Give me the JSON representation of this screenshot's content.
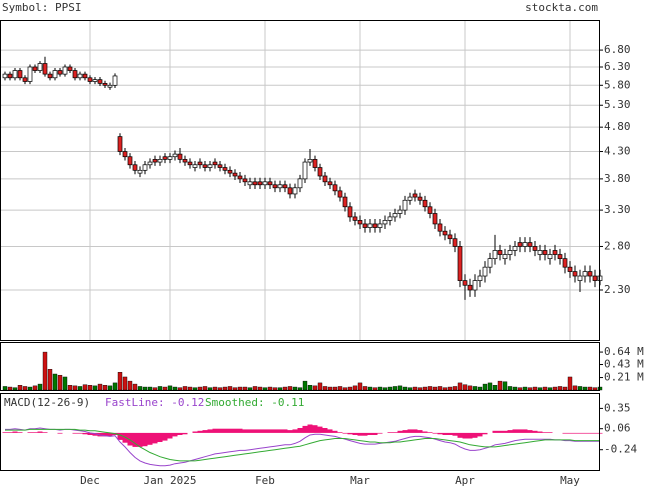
{
  "chart_data": [
    {
      "type": "candlestick",
      "title": "Symbol: PPSI",
      "source": "stockta.com",
      "log_scale": true,
      "grid": true,
      "up_color": "#ffffff",
      "down_color": "#dd2222",
      "outline_color": "#000000",
      "x": [
        0,
        1,
        2,
        3,
        4,
        5,
        6,
        7,
        8,
        9,
        10,
        11,
        12,
        13,
        14,
        15,
        16,
        17,
        18,
        19,
        20,
        21,
        22,
        23,
        24,
        25,
        26,
        27,
        28,
        29,
        30,
        31,
        32,
        33,
        34,
        35,
        36,
        37,
        38,
        39,
        40,
        41,
        42,
        43,
        44,
        45,
        46,
        47,
        48,
        49,
        50,
        51,
        52,
        53,
        54,
        55,
        56,
        57,
        58,
        59,
        60,
        61,
        62,
        63,
        64,
        65,
        66,
        67,
        68,
        69,
        70,
        71,
        72,
        73,
        74,
        75,
        76,
        77,
        78,
        79,
        80,
        81,
        82,
        83,
        84,
        85,
        86,
        87,
        88,
        89,
        90,
        91,
        92,
        93,
        94,
        95,
        96,
        97,
        98,
        99,
        100,
        101,
        102,
        103,
        104,
        105,
        106,
        107,
        108,
        109,
        110,
        111,
        112,
        113,
        114,
        115,
        116,
        117,
        118,
        119
      ],
      "xlim": [
        -1,
        119
      ],
      "xticks": [
        {
          "value": 17,
          "label": "Dec"
        },
        {
          "value": 33,
          "label": "Jan 2025"
        },
        {
          "value": 52,
          "label": "Feb"
        },
        {
          "value": 71,
          "label": "Mar"
        },
        {
          "value": 92,
          "label": "Apr"
        },
        {
          "value": 113,
          "label": "May"
        }
      ],
      "ylim": [
        1.835,
        7.79
      ],
      "yticks": [
        {
          "value": 6.8,
          "label": "6.80"
        },
        {
          "value": 6.3,
          "label": "6.30"
        },
        {
          "value": 5.8,
          "label": "5.80"
        },
        {
          "value": 5.3,
          "label": "5.30"
        },
        {
          "value": 4.8,
          "label": "4.80"
        },
        {
          "value": 4.3,
          "label": "4.30"
        },
        {
          "value": 3.8,
          "label": "3.80"
        },
        {
          "value": 3.3,
          "label": "3.30"
        },
        {
          "value": 2.8,
          "label": "2.80"
        },
        {
          "value": 2.3,
          "label": "2.30"
        }
      ],
      "open": [
        6.0,
        6.1,
        6.0,
        6.2,
        6.0,
        5.9,
        6.3,
        6.2,
        6.4,
        6.1,
        6.0,
        6.2,
        6.1,
        6.3,
        6.2,
        6.0,
        6.1,
        6.0,
        5.9,
        5.95,
        5.85,
        5.75,
        5.8,
        4.6,
        4.3,
        4.2,
        4.05,
        3.9,
        3.95,
        4.05,
        4.15,
        4.1,
        4.2,
        4.15,
        4.2,
        4.25,
        4.15,
        4.1,
        4.0,
        4.1,
        4.05,
        4.0,
        4.1,
        4.05,
        4.0,
        3.95,
        3.9,
        3.85,
        3.8,
        3.7,
        3.75,
        3.75,
        3.7,
        3.75,
        3.7,
        3.65,
        3.7,
        3.65,
        3.55,
        3.65,
        3.8,
        4.1,
        4.15,
        4.0,
        3.85,
        3.75,
        3.7,
        3.6,
        3.5,
        3.35,
        3.2,
        3.15,
        3.1,
        3.05,
        3.1,
        3.05,
        3.1,
        3.15,
        3.2,
        3.25,
        3.3,
        3.45,
        3.55,
        3.5,
        3.45,
        3.35,
        3.25,
        3.1,
        3.0,
        2.95,
        2.9,
        2.8,
        2.4,
        2.35,
        2.3,
        2.4,
        2.45,
        2.55,
        2.65,
        2.75,
        2.65,
        2.7,
        2.75,
        2.85,
        2.8,
        2.85,
        2.8,
        2.7,
        2.75,
        2.65,
        2.75,
        2.7,
        2.65,
        2.55,
        2.5,
        2.4,
        2.45,
        2.5,
        2.45,
        2.4
      ],
      "high": [
        6.17,
        6.17,
        6.27,
        6.27,
        6.07,
        6.37,
        6.37,
        6.47,
        6.6,
        6.17,
        6.27,
        6.27,
        6.37,
        6.37,
        6.27,
        6.17,
        6.17,
        6.07,
        6.02,
        6.02,
        5.92,
        5.87,
        6.12,
        4.67,
        4.37,
        4.27,
        4.12,
        4.02,
        4.12,
        4.17,
        4.22,
        4.22,
        4.27,
        4.27,
        4.32,
        4.37,
        4.22,
        4.17,
        4.12,
        4.17,
        4.12,
        4.12,
        4.17,
        4.12,
        4.07,
        4.02,
        3.97,
        3.92,
        3.87,
        3.82,
        3.82,
        3.82,
        3.82,
        3.82,
        3.77,
        3.77,
        3.77,
        3.72,
        3.72,
        3.87,
        4.17,
        4.35,
        4.22,
        4.07,
        3.92,
        3.82,
        3.77,
        3.67,
        3.57,
        3.42,
        3.27,
        3.22,
        3.17,
        3.17,
        3.17,
        3.17,
        3.22,
        3.27,
        3.32,
        3.37,
        3.52,
        3.57,
        3.62,
        3.57,
        3.52,
        3.42,
        3.32,
        3.17,
        3.07,
        3.02,
        2.97,
        2.87,
        2.47,
        2.42,
        2.47,
        2.52,
        2.62,
        2.72,
        2.95,
        2.82,
        2.77,
        2.82,
        2.87,
        2.92,
        2.92,
        2.92,
        2.87,
        2.82,
        2.82,
        2.77,
        2.82,
        2.77,
        2.72,
        2.62,
        2.57,
        2.52,
        2.57,
        2.57,
        2.52,
        2.52
      ],
      "low": [
        5.93,
        5.93,
        5.93,
        5.93,
        5.83,
        5.83,
        6.13,
        6.13,
        6.03,
        5.93,
        5.93,
        6.03,
        6.03,
        6.13,
        5.93,
        5.93,
        5.93,
        5.83,
        5.83,
        5.78,
        5.73,
        5.68,
        5.73,
        4.23,
        4.13,
        3.98,
        3.88,
        3.83,
        3.88,
        3.98,
        4.03,
        4.03,
        4.08,
        4.08,
        4.13,
        4.08,
        4.03,
        3.98,
        3.93,
        3.98,
        3.93,
        3.93,
        3.98,
        3.93,
        3.88,
        3.83,
        3.78,
        3.73,
        3.68,
        3.63,
        3.63,
        3.63,
        3.63,
        3.63,
        3.58,
        3.58,
        3.58,
        3.48,
        3.48,
        3.58,
        3.73,
        4.03,
        3.93,
        3.78,
        3.68,
        3.63,
        3.53,
        3.43,
        3.28,
        3.13,
        3.08,
        3.03,
        2.98,
        2.98,
        2.98,
        2.98,
        3.03,
        3.08,
        3.13,
        3.18,
        3.23,
        3.38,
        3.43,
        3.38,
        3.28,
        3.18,
        3.03,
        2.93,
        2.88,
        2.83,
        2.73,
        2.33,
        2.2,
        2.23,
        2.23,
        2.33,
        2.38,
        2.48,
        2.58,
        2.63,
        2.58,
        2.63,
        2.68,
        2.73,
        2.73,
        2.73,
        2.68,
        2.63,
        2.63,
        2.58,
        2.63,
        2.58,
        2.48,
        2.43,
        2.38,
        2.28,
        2.38,
        2.38,
        2.33,
        2.35
      ],
      "close": [
        6.1,
        6.0,
        6.2,
        6.0,
        5.9,
        6.3,
        6.2,
        6.4,
        6.1,
        6.0,
        6.2,
        6.1,
        6.3,
        6.2,
        6.0,
        6.1,
        6.0,
        5.9,
        5.95,
        5.85,
        5.8,
        5.8,
        6.05,
        4.3,
        4.2,
        4.05,
        3.95,
        3.95,
        4.05,
        4.1,
        4.1,
        4.15,
        4.15,
        4.2,
        4.25,
        4.15,
        4.1,
        4.05,
        4.05,
        4.05,
        4.0,
        4.05,
        4.05,
        4.0,
        3.95,
        3.9,
        3.85,
        3.8,
        3.75,
        3.75,
        3.7,
        3.7,
        3.75,
        3.7,
        3.65,
        3.7,
        3.65,
        3.55,
        3.65,
        3.8,
        4.1,
        4.15,
        4.0,
        3.85,
        3.75,
        3.7,
        3.6,
        3.5,
        3.35,
        3.2,
        3.15,
        3.1,
        3.05,
        3.1,
        3.05,
        3.1,
        3.15,
        3.2,
        3.25,
        3.3,
        3.45,
        3.5,
        3.5,
        3.45,
        3.35,
        3.25,
        3.1,
        3.0,
        2.95,
        2.9,
        2.8,
        2.4,
        2.35,
        2.3,
        2.4,
        2.45,
        2.55,
        2.65,
        2.75,
        2.7,
        2.7,
        2.75,
        2.8,
        2.8,
        2.85,
        2.8,
        2.75,
        2.75,
        2.7,
        2.7,
        2.7,
        2.65,
        2.55,
        2.5,
        2.45,
        2.45,
        2.5,
        2.45,
        2.4,
        2.45
      ]
    },
    {
      "type": "volume",
      "up_color": "#007700",
      "down_color": "#cc1111",
      "ylim": [
        0,
        0.81
      ],
      "yticks": [
        {
          "value": 0.64,
          "label": "0.64 M"
        },
        {
          "value": 0.43,
          "label": "0.43 M"
        },
        {
          "value": 0.21,
          "label": "0.21 M"
        }
      ],
      "values": [
        0.06,
        0.05,
        0.04,
        0.08,
        0.06,
        0.05,
        0.07,
        0.1,
        0.64,
        0.35,
        0.27,
        0.25,
        0.22,
        0.08,
        0.07,
        0.06,
        0.09,
        0.08,
        0.07,
        0.1,
        0.08,
        0.07,
        0.12,
        0.3,
        0.22,
        0.15,
        0.1,
        0.06,
        0.05,
        0.05,
        0.04,
        0.06,
        0.05,
        0.07,
        0.05,
        0.04,
        0.06,
        0.05,
        0.04,
        0.05,
        0.06,
        0.04,
        0.05,
        0.04,
        0.05,
        0.06,
        0.04,
        0.05,
        0.05,
        0.04,
        0.06,
        0.05,
        0.04,
        0.05,
        0.04,
        0.04,
        0.05,
        0.06,
        0.05,
        0.04,
        0.15,
        0.08,
        0.07,
        0.12,
        0.06,
        0.05,
        0.05,
        0.06,
        0.04,
        0.05,
        0.07,
        0.12,
        0.06,
        0.05,
        0.04,
        0.05,
        0.04,
        0.05,
        0.06,
        0.07,
        0.05,
        0.04,
        0.05,
        0.04,
        0.05,
        0.06,
        0.05,
        0.06,
        0.04,
        0.05,
        0.06,
        0.12,
        0.09,
        0.07,
        0.06,
        0.05,
        0.1,
        0.12,
        0.08,
        0.15,
        0.14,
        0.06,
        0.05,
        0.04,
        0.05,
        0.04,
        0.05,
        0.04,
        0.05,
        0.04,
        0.05,
        0.06,
        0.05,
        0.22,
        0.07,
        0.06,
        0.05,
        0.05,
        0.04,
        0.05
      ]
    },
    {
      "type": "macd",
      "title": "MACD(12-26-9)",
      "histogram_color": "#ee1177",
      "ylim": [
        -0.53,
        0.57
      ],
      "yticks": [
        0.35,
        0.06,
        -0.24
      ],
      "series": [
        {
          "name": "FastLine: -0.12",
          "color": "#9944cc",
          "values": [
            0.05,
            0.05,
            0.06,
            0.05,
            0.04,
            0.06,
            0.06,
            0.07,
            0.06,
            0.05,
            0.05,
            0.04,
            0.05,
            0.05,
            0.04,
            0.03,
            0.02,
            0.0,
            -0.01,
            -0.03,
            -0.04,
            -0.05,
            -0.04,
            -0.13,
            -0.2,
            -0.28,
            -0.35,
            -0.4,
            -0.43,
            -0.45,
            -0.46,
            -0.47,
            -0.47,
            -0.46,
            -0.44,
            -0.43,
            -0.42,
            -0.4,
            -0.38,
            -0.36,
            -0.34,
            -0.32,
            -0.3,
            -0.29,
            -0.28,
            -0.27,
            -0.26,
            -0.25,
            -0.25,
            -0.24,
            -0.23,
            -0.22,
            -0.21,
            -0.2,
            -0.19,
            -0.18,
            -0.17,
            -0.17,
            -0.15,
            -0.12,
            -0.07,
            -0.03,
            -0.02,
            -0.02,
            -0.03,
            -0.04,
            -0.05,
            -0.07,
            -0.09,
            -0.11,
            -0.13,
            -0.15,
            -0.16,
            -0.16,
            -0.16,
            -0.15,
            -0.14,
            -0.13,
            -0.12,
            -0.1,
            -0.08,
            -0.06,
            -0.05,
            -0.05,
            -0.06,
            -0.07,
            -0.09,
            -0.11,
            -0.13,
            -0.14,
            -0.16,
            -0.2,
            -0.23,
            -0.25,
            -0.25,
            -0.24,
            -0.22,
            -0.2,
            -0.17,
            -0.16,
            -0.15,
            -0.13,
            -0.11,
            -0.1,
            -0.09,
            -0.09,
            -0.09,
            -0.09,
            -0.09,
            -0.09,
            -0.1,
            -0.1,
            -0.11,
            -0.11,
            -0.12,
            -0.12,
            -0.12,
            -0.12,
            -0.12,
            -0.12
          ]
        },
        {
          "name": "Smoothed: -0.11",
          "color": "#33aa33",
          "values": [
            0.04,
            0.04,
            0.04,
            0.04,
            0.04,
            0.05,
            0.05,
            0.05,
            0.05,
            0.05,
            0.05,
            0.05,
            0.05,
            0.05,
            0.05,
            0.04,
            0.04,
            0.03,
            0.03,
            0.02,
            0.01,
            0.0,
            -0.01,
            -0.03,
            -0.06,
            -0.1,
            -0.15,
            -0.2,
            -0.24,
            -0.28,
            -0.31,
            -0.34,
            -0.36,
            -0.38,
            -0.39,
            -0.4,
            -0.4,
            -0.4,
            -0.4,
            -0.39,
            -0.38,
            -0.37,
            -0.36,
            -0.35,
            -0.34,
            -0.33,
            -0.32,
            -0.31,
            -0.3,
            -0.29,
            -0.28,
            -0.27,
            -0.26,
            -0.25,
            -0.24,
            -0.23,
            -0.22,
            -0.21,
            -0.2,
            -0.19,
            -0.17,
            -0.15,
            -0.13,
            -0.11,
            -0.1,
            -0.09,
            -0.08,
            -0.08,
            -0.08,
            -0.09,
            -0.1,
            -0.11,
            -0.12,
            -0.13,
            -0.13,
            -0.14,
            -0.14,
            -0.14,
            -0.13,
            -0.13,
            -0.12,
            -0.11,
            -0.1,
            -0.09,
            -0.08,
            -0.08,
            -0.08,
            -0.09,
            -0.1,
            -0.11,
            -0.12,
            -0.13,
            -0.15,
            -0.17,
            -0.18,
            -0.19,
            -0.2,
            -0.2,
            -0.2,
            -0.19,
            -0.18,
            -0.17,
            -0.16,
            -0.15,
            -0.14,
            -0.13,
            -0.12,
            -0.11,
            -0.1,
            -0.1,
            -0.1,
            -0.1,
            -0.1,
            -0.1,
            -0.11,
            -0.11,
            -0.11,
            -0.11,
            -0.11,
            -0.11
          ]
        }
      ]
    }
  ]
}
